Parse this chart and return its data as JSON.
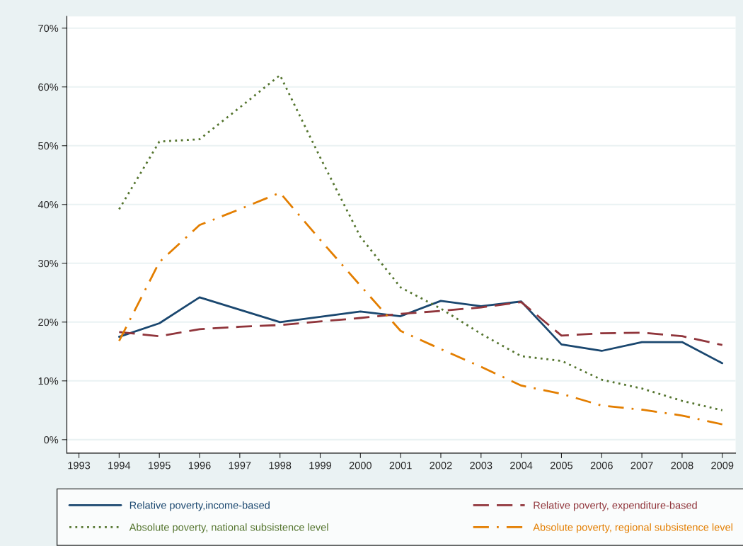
{
  "chart_data": {
    "type": "line",
    "x": [
      1994,
      1995,
      1996,
      1997,
      1998,
      1999,
      2000,
      2001,
      2002,
      2003,
      2004,
      2005,
      2006,
      2007,
      2008,
      2009
    ],
    "xlim": [
      1992.7,
      2009.33
    ],
    "xticks": [
      1993,
      1994,
      1995,
      1996,
      1997,
      1998,
      1999,
      2000,
      2001,
      2002,
      2003,
      2004,
      2005,
      2006,
      2007,
      2008,
      2009
    ],
    "ylim": [
      -2.3,
      72
    ],
    "yticks": [
      {
        "value": 0,
        "label": "0%"
      },
      {
        "value": 10,
        "label": "10%"
      },
      {
        "value": 20,
        "label": "20%"
      },
      {
        "value": 30,
        "label": "30%"
      },
      {
        "value": 40,
        "label": "40%"
      },
      {
        "value": 50,
        "label": "50%"
      },
      {
        "value": 60,
        "label": "60%"
      },
      {
        "value": 70,
        "label": "70%"
      }
    ],
    "grid": "y",
    "legend": "bottom",
    "marker": "none",
    "series": [
      {
        "name": "Relative poverty,income-based",
        "color": "#1a476f",
        "line_style": "solid",
        "values": [
          17.5,
          19.8,
          24.2,
          22.1,
          20.0,
          20.9,
          21.8,
          21.0,
          23.6,
          22.7,
          23.5,
          16.2,
          15.1,
          16.6,
          16.6,
          13.0
        ]
      },
      {
        "name": "Relative poverty, expenditure-based",
        "color": "#90353b",
        "line_style": "dashed",
        "values": [
          18.3,
          17.6,
          18.8,
          19.2,
          19.5,
          20.1,
          20.7,
          21.4,
          21.9,
          22.5,
          23.4,
          17.7,
          18.1,
          18.2,
          17.6,
          16.1
        ]
      },
      {
        "name": "Absolute poverty, national subsistence level",
        "color": "#55752f",
        "line_style": "dotted",
        "values": [
          39.2,
          50.7,
          51.1,
          56.5,
          62.0,
          48.0,
          34.5,
          25.9,
          22.3,
          18.0,
          14.2,
          13.4,
          10.2,
          8.7,
          6.6,
          5.0
        ]
      },
      {
        "name": "Absolute poverty, regional subsistence level",
        "color": "#e37e00",
        "line_style": "dashdot",
        "values": [
          16.8,
          30.2,
          36.5,
          39.2,
          42.0,
          34.0,
          26.2,
          18.5,
          15.4,
          12.4,
          9.2,
          7.8,
          5.8,
          5.1,
          4.1,
          2.6
        ]
      }
    ]
  }
}
